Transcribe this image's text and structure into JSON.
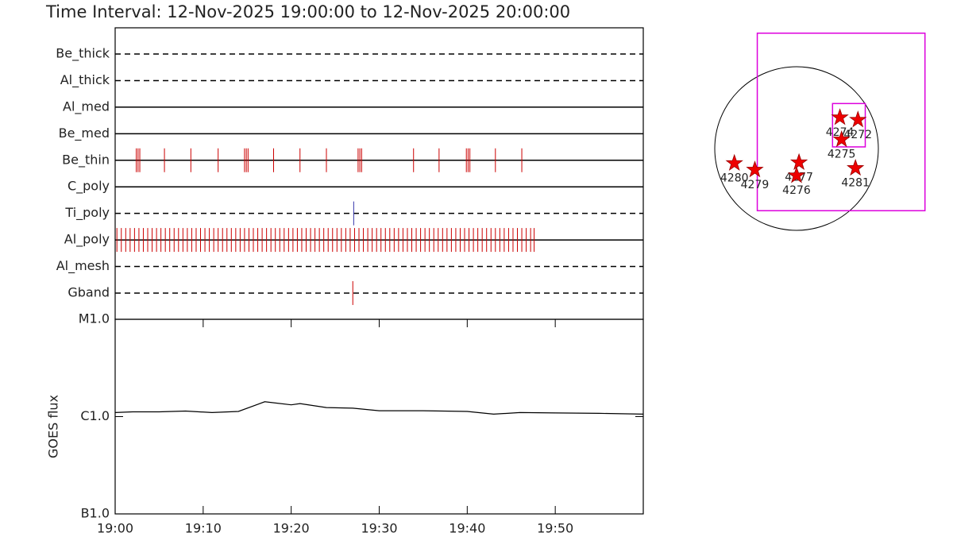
{
  "chart_data": [
    {
      "type": "timeline",
      "title": "Time Interval: 12-Nov-2025 19:00:00 to 12-Nov-2025 20:00:00",
      "categories": [
        "Be_thick",
        "Al_thick",
        "Al_med",
        "Be_med",
        "Be_thin",
        "C_poly",
        "Ti_poly",
        "Al_poly",
        "Al_mesh",
        "Gband"
      ],
      "line_styles": [
        "dashed",
        "dashed",
        "solid",
        "solid",
        "solid",
        "solid",
        "dashed",
        "solid",
        "dashed",
        "dashed"
      ],
      "event_colors": [
        "#cc0000",
        "#cc0000",
        "#cc0000",
        "#cc0000",
        "#cc0000",
        "#cc0000",
        "#3333aa",
        "#cc0000",
        "#cc0000",
        "#cc0000"
      ],
      "xlim": [
        0,
        60
      ],
      "events": [
        [],
        [],
        [],
        [],
        [
          2.4,
          2.6,
          2.8,
          5.6,
          8.6,
          11.7,
          14.7,
          14.9,
          15.1,
          18.0,
          21.0,
          24.0,
          27.6,
          27.8,
          28.0,
          33.9,
          36.8,
          39.9,
          40.1,
          40.3,
          43.2,
          46.2
        ],
        [],
        [
          27.1
        ],
        [
          0.2,
          0.7,
          1.2,
          1.7,
          2.2,
          2.7,
          3.2,
          3.7,
          4.2,
          4.7,
          5.2,
          5.7,
          6.2,
          6.7,
          7.2,
          7.7,
          8.2,
          8.7,
          9.2,
          9.7,
          10.2,
          10.7,
          11.2,
          11.7,
          12.2,
          12.7,
          13.2,
          13.7,
          14.2,
          14.7,
          15.2,
          15.7,
          16.2,
          16.7,
          17.2,
          17.7,
          18.2,
          18.7,
          19.2,
          19.7,
          20.2,
          20.7,
          21.2,
          21.7,
          22.2,
          22.7,
          23.2,
          23.7,
          24.2,
          24.7,
          25.2,
          25.7,
          26.2,
          26.7,
          27.2,
          27.7,
          28.2,
          28.7,
          29.2,
          29.7,
          30.2,
          30.7,
          31.2,
          31.7,
          32.2,
          32.7,
          33.2,
          33.7,
          34.2,
          34.7,
          35.2,
          35.7,
          36.2,
          36.7,
          37.2,
          37.7,
          38.2,
          38.7,
          39.2,
          39.7,
          40.2,
          40.7,
          41.2,
          41.7,
          42.2,
          42.7,
          43.2,
          43.7,
          44.2,
          44.7,
          45.2,
          45.7,
          46.2,
          46.7,
          47.2,
          47.6
        ],
        [],
        [
          27.0
        ]
      ]
    },
    {
      "type": "line",
      "ylabel": "GOES flux",
      "log_y": true,
      "color": "#000000",
      "xlim": [
        0,
        60
      ],
      "xticks": [
        {
          "value": 0,
          "label": "19:00"
        },
        {
          "value": 10,
          "label": "19:10"
        },
        {
          "value": 20,
          "label": "19:20"
        },
        {
          "value": 30,
          "label": "19:30"
        },
        {
          "value": 40,
          "label": "19:40"
        },
        {
          "value": 50,
          "label": "19:50"
        }
      ],
      "ylim": [
        1e-07,
        1e-05
      ],
      "yticks": [
        {
          "value": 1e-07,
          "label": "B1.0"
        },
        {
          "value": 1e-06,
          "label": "C1.0"
        },
        {
          "value": 1e-05,
          "label": "M1.0"
        }
      ],
      "x": [
        0,
        2,
        5,
        8,
        11,
        14,
        17,
        20,
        21,
        24,
        27,
        30,
        35,
        40,
        43,
        46,
        50,
        55,
        60
      ],
      "values": [
        1.1e-06,
        1.12e-06,
        1.12e-06,
        1.14e-06,
        1.1e-06,
        1.13e-06,
        1.42e-06,
        1.32e-06,
        1.36e-06,
        1.24e-06,
        1.22e-06,
        1.15e-06,
        1.15e-06,
        1.13e-06,
        1.06e-06,
        1.1e-06,
        1.09e-06,
        1.08e-06,
        1.06e-06
      ]
    },
    {
      "type": "map",
      "color": "#ee0000",
      "fov_color": "#dd00dd",
      "labels": [
        "4280",
        "4279",
        "4277",
        "4276",
        "4274",
        "4272",
        "4275",
        "4281"
      ],
      "x": [
        -0.76,
        -0.51,
        0.03,
        0.0,
        0.53,
        0.75,
        0.55,
        0.72
      ],
      "y": [
        -0.18,
        -0.26,
        -0.17,
        -0.33,
        0.38,
        0.35,
        0.11,
        -0.24
      ],
      "fov": [
        [
          -0.48,
          1.41,
          1.57,
          -0.76
        ],
        [
          0.44,
          0.55,
          0.84,
          0.02
        ]
      ]
    }
  ]
}
